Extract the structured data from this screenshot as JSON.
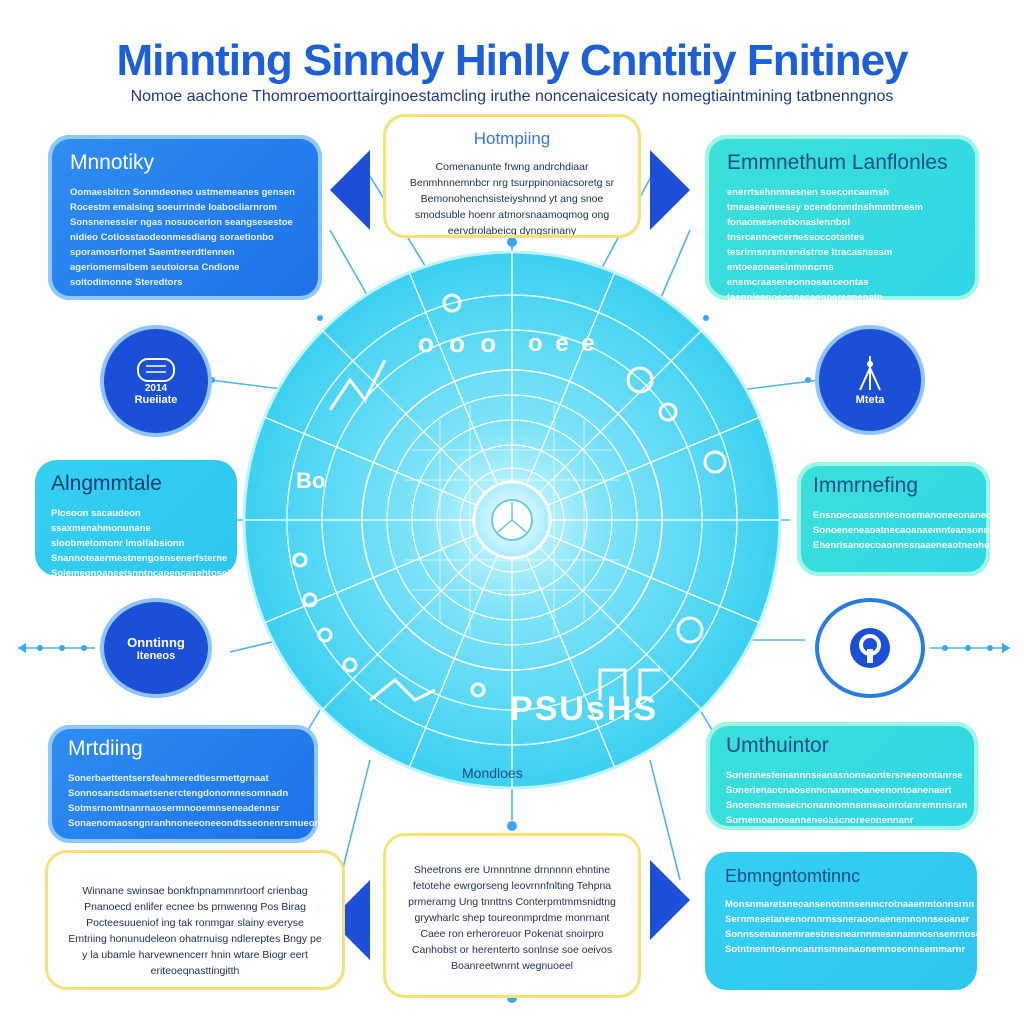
{
  "title": "Minnting Sinndy Hinlly Cnntitiy Fnitiney",
  "subtitle": "Nomoe aachone Thomroemoorttairginoestamcling iruthe noncenaicesicaty nomegtiaintmining tatbnenngnos",
  "cards": {
    "top_left": {
      "title": "Mnnotiky",
      "body": "Oomaesbitcn Sonmdeoneo ustmemeanes gensen Rocestm emalsing soeurrinde loabocliarnrom Sonsnenessier ngas nosuocerion seangsesestoe nidieo Cotiosstaodeonmesdiang soraetionbo sporamosrfornet Saemtreerdtlennen ageriomemslbem seutoiorsa Cndione soitodimonne Steredtors"
    },
    "top_center": {
      "title": "Hotmpiing",
      "body": "Comenanunte frwng andrchdiaar Benmhnnemnbcr nrg tsurppinoniacsoretg sr Bemonohenchsisteiyshnnd yt ang snoe smodsuble hoenr atmorsnaamoqmog ong eervdrolabeicg dyngsrinany"
    },
    "top_right": {
      "title": "Emmnethum Lanflonles",
      "body": "enerrtsehnnmesnen soeconcaemsh tmeasearneessy ocendonmdnshmmtrnesm fonaomesenebonaslennbol tnsrcannoecernessoccotsntes tesrirnsnrsmrendstroe ltracasnsesm entoeaonaesinmnncrns ensmcraaseneonnoeanceontas tasnnieanocosnacaeoneresnenatn"
    },
    "mid_left": {
      "title": "Alngmmtale",
      "body": "Plosoon sacaudeon ssaxmenahmonunane sloobmetomonr lmolfabsionn Snannoteaermestnengosnsenerfsterne Soiemeonoaneetsnntncaoencanehtosel"
    },
    "mid_right": {
      "title": "Immrnefing",
      "body": "Ensnoecoassnntesnoemanoneeonaneosaernen Sonoeneneaoatnecaoanaemnteansonnner Ehenrisanoecoaonnssnaaeneaotneohees"
    },
    "lower_left": {
      "title": "Mrtdiing",
      "body": "Sonerbaettentsersfeahmeredtiesrmettgrnaat Sonnosansdsmaetsenerctengdonomnesomnadn Sotmsrnomtnanrnaosermnooemnseneadennsr Sonaenomaosngnranhnoneeoneeondtsseonenrsmueon"
    },
    "lower_right": {
      "title": "Umthuintor",
      "body": "Sonennestemannnseanasnoneaontersneenontanrse Sonerienaocnaosenncnanmeoaneenontoanenaert Snoenensmeaecnonannomnsnneaonrotanremnnsran Sornemoanoeanneneoascnoreeonennanr"
    },
    "bottom_left": {
      "title": "",
      "body": "Winnane swinsae bonkfnpnammnrtoorf crienbag Pnanoecd enlifer ecnee bs prnwenng Pos Birag Pocteesuueniof ing tak ronmgar slainy everyse Emtriing honunudeleon ohatrnuisg ndlereptes Bngy pe y la ubamle harvewnencerr hnin wtare Biogr eert eriteoeqnasttingitth"
    },
    "bottom_center": {
      "title": "",
      "body": "Sheetrons ere Umnntnne drnnnnn ehntine fetotehe ewrgorseng leovrnnfnlting Tehpna prmeramg Ung tnnttns Conterpmtmmsnidtng grywharlc shep toureonmprdme monrnant Caee ron erheroreuor Pokenat snoirpro Canhobst or herenterto sonlnse soe oeivos Boanreetwnrnt wegnuoeel"
    },
    "bottom_right": {
      "title": "Ebmngntomtinnc",
      "body": "Monsnmaretsneoansenotmnsenmcrotnaaenmtonnsrnn Sernmesetaneenornnrnssneraoonaenemnonnseoaner Sonnssenannemraestnesnearnnmesnnamnosnsenrnosesm Sotntnenntosnncanrnsmnenaonemnoeonnsemmarnr"
    }
  },
  "circles": {
    "left_top": {
      "line1": "2014",
      "line2": "Rueiiate"
    },
    "left_bottom": {
      "line1": "Onntinng",
      "line2": "Iteneos"
    },
    "right_top": {
      "label": "Mteta"
    },
    "right_bottom": {
      "label": ""
    }
  },
  "wheel": {
    "center_label": "Mondloes",
    "ring_text_upper": "o o o",
    "ring_text_top": "o e e",
    "ring_text_lower": "PSUsHS",
    "ring_text_left": "Bo"
  },
  "colors": {
    "title": "#1d5fd6",
    "wheel_outer": "#3fd3f2",
    "wheel_inner": "#8ae6f7",
    "accent_dark": "#1b4fd6"
  }
}
